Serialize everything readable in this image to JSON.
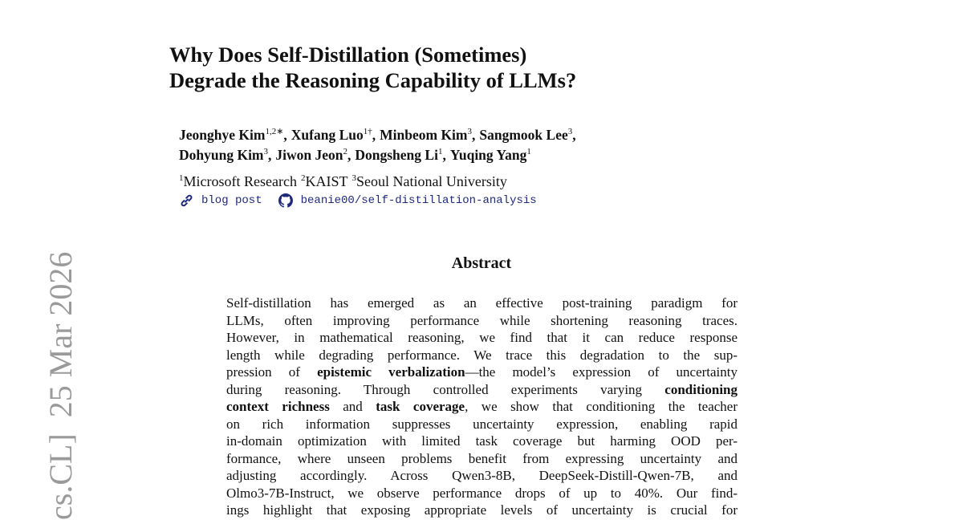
{
  "sidebar": {
    "stamp": "cs.CL]  25 Mar 2026"
  },
  "header": {
    "title_lines": [
      "Why Does Self-Distillation (Sometimes)",
      "Degrade the Reasoning Capability of LLMs?"
    ]
  },
  "authors": {
    "lines": [
      [
        {
          "name": "Jeonghye Kim",
          "sup": "1,2∗",
          "after": ","
        },
        {
          "name": "Xufang Luo",
          "sup": "1†",
          "after": ","
        },
        {
          "name": "Minbeom Kim",
          "sup": "3",
          "after": ","
        },
        {
          "name": "Sangmook Lee",
          "sup": "3",
          "after": ","
        }
      ],
      [
        {
          "name": "Dohyung Kim",
          "sup": "3",
          "after": ","
        },
        {
          "name": "Jiwon Jeon",
          "sup": "2",
          "after": ","
        },
        {
          "name": "Dongsheng Li",
          "sup": "1",
          "after": ","
        },
        {
          "name": "Yuqing Yang",
          "sup": "1"
        }
      ]
    ]
  },
  "affiliations": [
    {
      "sup": "1",
      "name": "Microsoft Research"
    },
    {
      "sup": "2",
      "name": "KAIST"
    },
    {
      "sup": "3",
      "name": "Seoul National University"
    }
  ],
  "links": {
    "blog": "blog post",
    "github": "beanie00/self-distillation-analysis"
  },
  "abstract": {
    "heading": "Abstract",
    "lines": [
      [
        "Self-distillation has emerged as an effective post-training paradigm for"
      ],
      [
        "LLMs, often improving performance while shortening reasoning traces."
      ],
      [
        "However, in mathematical reasoning, we find that it can reduce response"
      ],
      [
        "length while degrading performance. We trace this degradation to the sup-"
      ],
      [
        "pression of ",
        {
          "text": "epistemic verbalization",
          "bold": true
        },
        "—the model’s expression of uncertainty"
      ],
      [
        "during reasoning. Through controlled experiments varying ",
        {
          "text": "conditioning",
          "bold": true
        }
      ],
      [
        {
          "text": "context richness",
          "bold": true
        },
        " and ",
        {
          "text": "task coverage",
          "bold": true
        },
        ", we show that conditioning the teacher"
      ],
      [
        "on rich information suppresses uncertainty expression, enabling rapid"
      ],
      [
        "in-domain optimization with limited task coverage but harming OOD per-"
      ],
      [
        "formance, where unseen problems benefit from expressing uncertainty and"
      ],
      [
        "adjusting accordingly. Across Qwen3-8B, DeepSeek-Distill-Qwen-7B, and"
      ],
      [
        "Olmo3-7B-Instruct, we observe performance drops of up to 40%. Our find-"
      ],
      [
        "ings highlight that exposing appropriate levels of uncertainty is crucial for"
      ]
    ]
  }
}
